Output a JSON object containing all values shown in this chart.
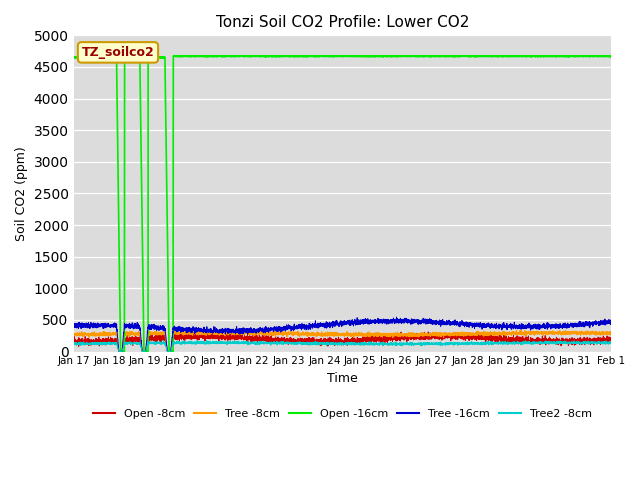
{
  "title": "Tonzi Soil CO2 Profile: Lower CO2",
  "xlabel": "Time",
  "ylabel": "Soil CO2 (ppm)",
  "ylim": [
    0,
    5000
  ],
  "yticks": [
    0,
    500,
    1000,
    1500,
    2000,
    2500,
    3000,
    3500,
    4000,
    4500,
    5000
  ],
  "bg_color": "#dcdcdc",
  "legend_label": "TZ_soilco2",
  "series": {
    "open_8cm": {
      "label": "Open -8cm",
      "color": "#cc0000"
    },
    "tree_8cm": {
      "label": "Tree -8cm",
      "color": "#ff9900"
    },
    "open_16cm": {
      "label": "Open -16cm",
      "color": "#00ee00"
    },
    "tree_16cm": {
      "label": "Tree -16cm",
      "color": "#0000cc"
    },
    "tree2_8cm": {
      "label": "Tree2 -8cm",
      "color": "#00cccc"
    }
  },
  "xstart": 17,
  "xend": 32,
  "xtick_labels": [
    "Jan 17",
    "Jan 18",
    "Jan 19",
    "Jan 20",
    "Jan 21",
    "Jan 22",
    "Jan 23",
    "Jan 24",
    "Jan 25",
    "Jan 26",
    "Jan 27",
    "Jan 28",
    "Jan 29",
    "Jan 30",
    "Jan 31",
    "Feb 1"
  ],
  "xtick_positions": [
    17,
    18,
    19,
    20,
    21,
    22,
    23,
    24,
    25,
    26,
    27,
    28,
    29,
    30,
    31,
    32
  ],
  "open_16cm_base": 4650,
  "open_16cm_flat": 4670
}
